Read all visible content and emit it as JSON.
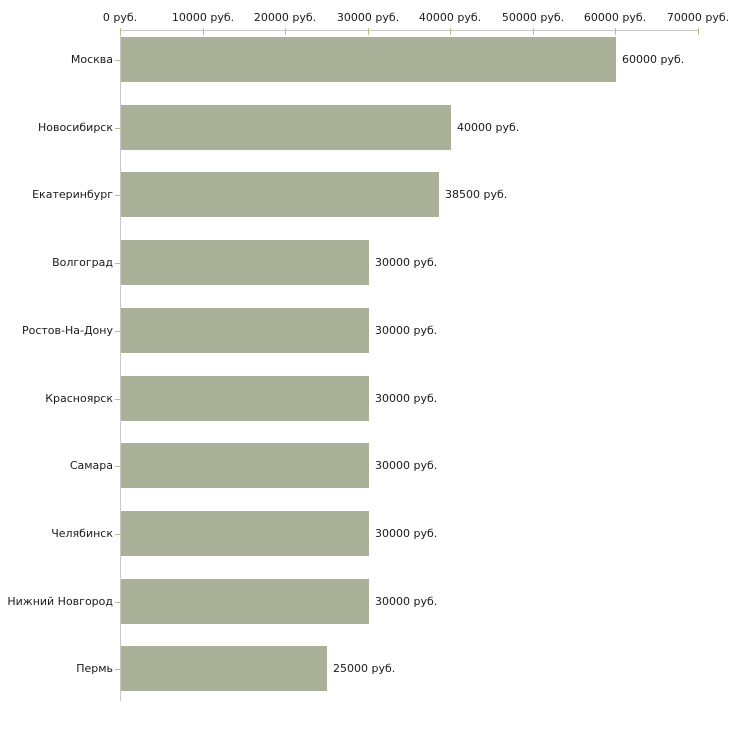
{
  "chart_data": {
    "type": "bar",
    "orientation": "horizontal",
    "title": "",
    "xlabel": "",
    "ylabel": "",
    "categories": [
      "Москва",
      "Новосибирск",
      "Екатеринбург",
      "Волгоград",
      "Ростов-На-Дону",
      "Красноярск",
      "Самара",
      "Челябинск",
      "Нижний Новгород",
      "Пермь"
    ],
    "values": [
      60000,
      40000,
      38500,
      30000,
      30000,
      30000,
      30000,
      30000,
      30000,
      25000
    ],
    "value_labels": [
      "60000 руб.",
      "40000 руб.",
      "38500 руб.",
      "30000 руб.",
      "30000 руб.",
      "30000 руб.",
      "30000 руб.",
      "30000 руб.",
      "30000 руб.",
      "25000 руб."
    ],
    "x_ticks": [
      0,
      10000,
      20000,
      30000,
      40000,
      50000,
      60000,
      70000
    ],
    "x_tick_labels": [
      "0 руб.",
      "10000 руб.",
      "20000 руб.",
      "30000 руб.",
      "40000 руб.",
      "50000 руб.",
      "60000 руб.",
      "70000 руб."
    ],
    "xlim": [
      0,
      70000
    ],
    "grid": false,
    "legend": null,
    "axis_position": "top",
    "colors": {
      "bar": "#a9b198",
      "axis_line": "#c8c8c8",
      "tick_mark": "#bcbc8a",
      "text": "#1a1a1a",
      "background": "#ffffff"
    }
  }
}
